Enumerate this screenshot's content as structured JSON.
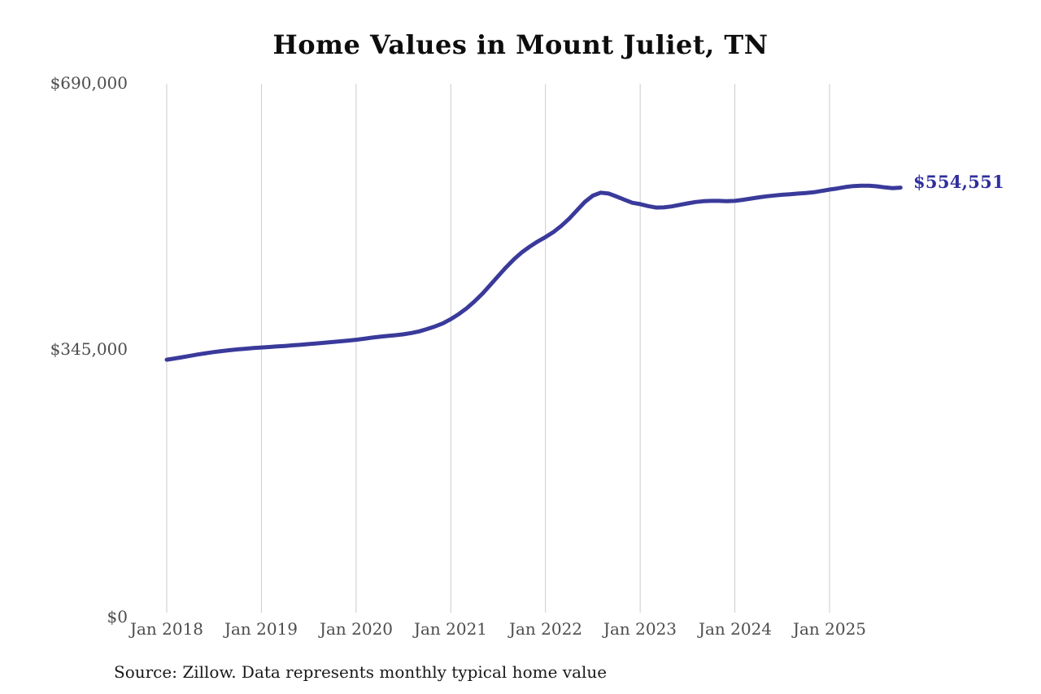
{
  "title": "Home Values in Mount Juliet, TN",
  "source_note": "Source: Zillow. Data represents monthly typical home value",
  "chart_data": {
    "type": "line",
    "title": "Home Values in Mount Juliet, TN",
    "xlabel": "",
    "ylabel": "",
    "ylim": [
      0,
      690000
    ],
    "grid": "vertical-only",
    "legend": "none",
    "line_color": "#3a3a9b",
    "gridline_color": "#cccccc",
    "tick_label_color": "#4d4d4d",
    "end_label": "$554,551",
    "end_value": 554551,
    "start_month": "Jan 2018",
    "end_month": "Oct 2025",
    "x_tick_labels": [
      "Jan 2018",
      "Jan 2019",
      "Jan 2020",
      "Jan 2021",
      "Jan 2022",
      "Jan 2023",
      "Jan 2024",
      "Jan 2025"
    ],
    "y_ticks": [
      {
        "label": "$690,000",
        "value": 690000
      },
      {
        "label": "$345,000",
        "value": 345000
      },
      {
        "label": "$0",
        "value": 0
      }
    ],
    "series": [
      {
        "name": "Typical home value (monthly)",
        "values": [
          330000,
          331600,
          333300,
          335100,
          336900,
          338500,
          340000,
          341300,
          342500,
          343500,
          344400,
          345200,
          346000,
          346600,
          347300,
          348000,
          348800,
          349600,
          350400,
          351300,
          352200,
          353100,
          354000,
          355000,
          356000,
          357300,
          358800,
          360000,
          361000,
          362000,
          363200,
          364800,
          367000,
          370000,
          373500,
          377500,
          383000,
          389500,
          397000,
          406000,
          416000,
          427500,
          439000,
          450500,
          461000,
          470000,
          477500,
          484200,
          490000,
          496500,
          504500,
          514000,
          525000,
          536000,
          544000,
          548000,
          546800,
          543000,
          538800,
          534800,
          533000,
          530500,
          528500,
          528800,
          530000,
          532000,
          534000,
          535800,
          536800,
          537200,
          537200,
          536800,
          537200,
          538600,
          540200,
          541800,
          543200,
          544300,
          545200,
          546000,
          546800,
          547500,
          548500,
          550200,
          552000,
          553500,
          555300,
          556600,
          557000,
          557000,
          556200,
          554900,
          553900,
          554551
        ]
      }
    ]
  }
}
